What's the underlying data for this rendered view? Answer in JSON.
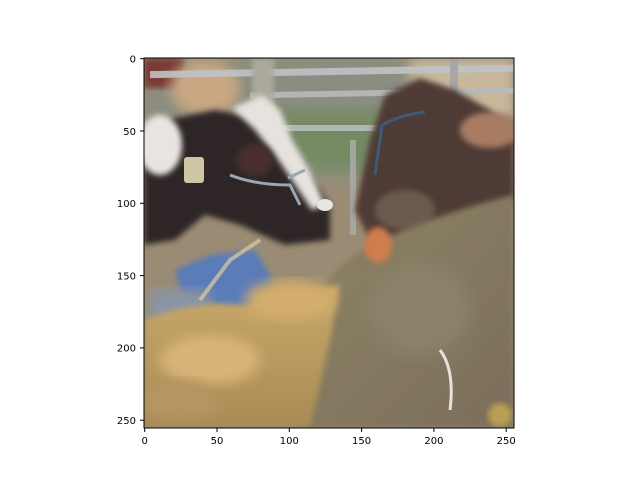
{
  "figure": {
    "image_description": "pixel-art style photo of cows behind metal fence rails with a person in blue and hay in foreground",
    "axes": {
      "x_ticks": [
        "0",
        "50",
        "100",
        "150",
        "200",
        "250"
      ],
      "y_ticks": [
        "0",
        "50",
        "100",
        "150",
        "200",
        "250"
      ],
      "x_range": [
        0,
        255
      ],
      "y_range": [
        0,
        255
      ],
      "y_inverted": true
    }
  },
  "colors": {
    "axes_stroke": "#000000",
    "background": "#ffffff"
  }
}
